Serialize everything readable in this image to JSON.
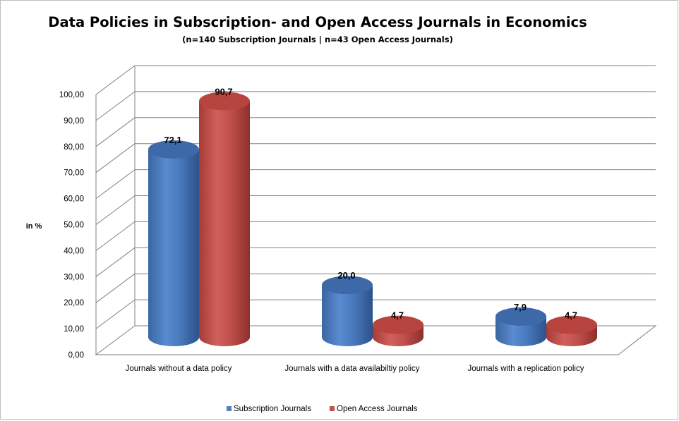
{
  "chart_data": {
    "type": "bar",
    "title": "Data Policies in Subscription- and Open Access Journals in Economics",
    "subtitle": "(n=140 Subscription Journals | n=43 Open Access Journals)",
    "ylabel": "in %",
    "xlabel": "",
    "ylim": [
      0,
      100
    ],
    "y_ticks": [
      "0,00",
      "10,00",
      "20,00",
      "30,00",
      "40,00",
      "50,00",
      "60,00",
      "70,00",
      "80,00",
      "90,00",
      "100,00"
    ],
    "categories": [
      "Journals without a data policy",
      "Journals with a data availabiltiy policy",
      "Journals with a replication policy"
    ],
    "series": [
      {
        "name": "Subscription Journals",
        "values": [
          72.1,
          20.0,
          7.9
        ],
        "labels": [
          "72,1",
          "20,0",
          "7,9"
        ],
        "color": "#4f81bd"
      },
      {
        "name": "Open Access Journals",
        "values": [
          90.7,
          4.7,
          4.7
        ],
        "labels": [
          "90,7",
          "4,7",
          "4,7"
        ],
        "color": "#c0504d"
      }
    ],
    "grid": true,
    "legend": "bottom",
    "style": "3d-cylinder"
  }
}
